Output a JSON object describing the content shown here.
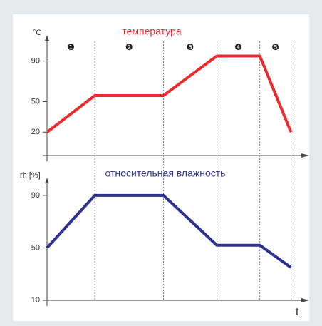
{
  "chart_data": [
    {
      "type": "line",
      "title": "температура",
      "ylabel": "°C",
      "color": "#ee2a2e",
      "x": [
        0,
        69,
        168,
        245,
        307,
        352
      ],
      "values": [
        20,
        56,
        56,
        95,
        95,
        20
      ],
      "xlim": [
        0,
        370
      ],
      "ylim": [
        -3,
        115
      ],
      "yticks": [
        20,
        50,
        90
      ],
      "phase_labels": [
        "❶",
        "❷",
        "❸",
        "❹",
        "❺"
      ],
      "phase_boundaries": [
        69,
        168,
        245,
        307,
        352
      ]
    },
    {
      "type": "line",
      "title": "относительная влажность",
      "ylabel": "rh [%]",
      "xlabel": "t",
      "color": "#2e3192",
      "x": [
        0,
        69,
        168,
        245,
        307,
        352
      ],
      "values": [
        50,
        90,
        90,
        52,
        52,
        35
      ],
      "xlim": [
        0,
        370
      ],
      "ylim": [
        10,
        103
      ],
      "yticks": [
        10,
        50,
        90
      ]
    }
  ]
}
